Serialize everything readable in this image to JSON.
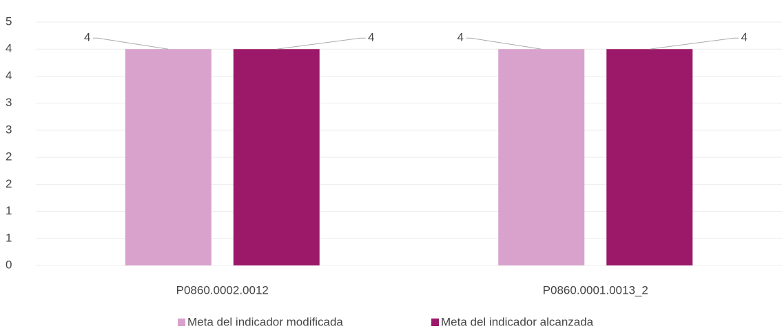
{
  "chart_data": {
    "type": "bar",
    "categories": [
      "P0860.0002.0012",
      "P0860.0001.0013_2"
    ],
    "series": [
      {
        "name": "Meta del indicador modificada",
        "color": "#d8a2cc",
        "values": [
          4,
          4
        ]
      },
      {
        "name": "Meta del indicador alcanzada",
        "color": "#9c1868",
        "values": [
          4,
          4
        ]
      }
    ],
    "ylim": [
      0,
      4.5
    ],
    "yticks": [
      0,
      {
        "value": 0.5,
        "label": "1"
      },
      1,
      {
        "value": 1.5,
        "label": "2"
      },
      2,
      {
        "value": 2.5,
        "label": "3"
      },
      3,
      {
        "value": 3.5,
        "label": "4"
      },
      4,
      {
        "value": 4.5,
        "label": "5"
      }
    ],
    "grid": true
  }
}
